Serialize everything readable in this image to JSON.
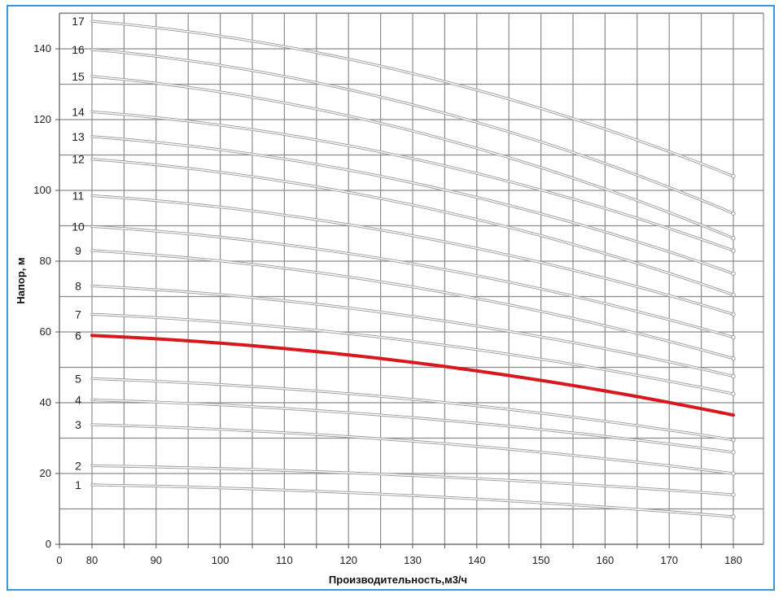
{
  "chart_data": {
    "type": "line",
    "title": "",
    "xlabel": "Производительность,м3/ч",
    "ylabel": "Напор, м",
    "xlim": [
      0,
      180
    ],
    "ylim": [
      0,
      140
    ],
    "x_ticks": [
      0,
      80,
      90,
      100,
      110,
      120,
      130,
      140,
      150,
      160,
      170,
      180
    ],
    "y_ticks": [
      0,
      20,
      40,
      60,
      80,
      100,
      120,
      140
    ],
    "grid": true,
    "highlight_color": "#d9171e",
    "curve_color": "#9a9a9a",
    "x": [
      80,
      180
    ],
    "series": [
      {
        "label": "1",
        "start": 16.8,
        "end": 7.8
      },
      {
        "label": "2",
        "start": 22.2,
        "end": 14.0
      },
      {
        "label": "3",
        "start": 33.8,
        "end": 20.0
      },
      {
        "label": "4",
        "start": 40.8,
        "end": 26.0
      },
      {
        "label": "5",
        "start": 46.8,
        "end": 29.5
      },
      {
        "label": "6",
        "start": 59.0,
        "end": 36.5,
        "highlight": true
      },
      {
        "label": "7",
        "start": 65.0,
        "end": 42.5
      },
      {
        "label": "8",
        "start": 73.0,
        "end": 47.5
      },
      {
        "label": "9",
        "start": 83.0,
        "end": 52.5
      },
      {
        "label": "10",
        "start": 89.8,
        "end": 58.5
      },
      {
        "label": "11",
        "start": 98.5,
        "end": 65.0
      },
      {
        "label": "12",
        "start": 108.8,
        "end": 70.5
      },
      {
        "label": "13",
        "start": 115.2,
        "end": 76.5
      },
      {
        "label": "14",
        "start": 122.2,
        "end": 83.0
      },
      {
        "label": "15",
        "start": 132.2,
        "end": 86.5
      },
      {
        "label": "16",
        "start": 139.8,
        "end": 93.5
      },
      {
        "label": "17",
        "start": 147.8,
        "end": 104.0
      }
    ]
  }
}
